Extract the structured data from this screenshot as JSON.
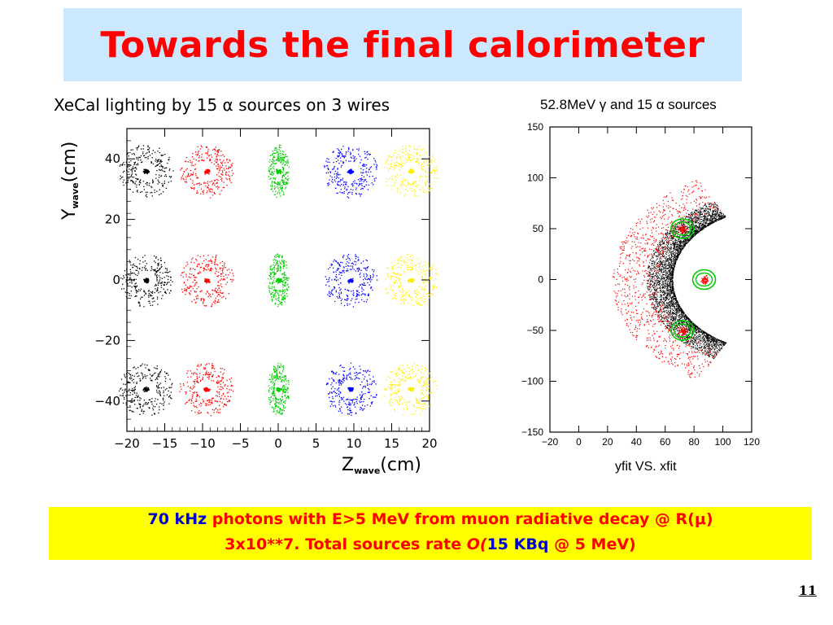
{
  "slide": {
    "title": "Towards the final calorimeter",
    "page_number": "11"
  },
  "footer": {
    "line1_rate": "70 kHz",
    "line1_text": "photons with E>5 MeV from muon radiative decay @ R(",
    "line1_mu": "μ",
    "line1_close": ")",
    "line2_text": "3x10**7. Total sources rate ",
    "line2_o": "O(",
    "line2_value": "15",
    "line2_unit": "KBq",
    "line2_rest": "@ 5 MeV",
    "line2_close": ")"
  },
  "chart_data": [
    {
      "type": "scatter",
      "title": "XeCal lighting by 15 α sources on 3 wires",
      "xlabel_main": "Z",
      "xlabel_sub": "wave",
      "xlabel_unit": "(cm)",
      "ylabel_main": "Y",
      "ylabel_sub": "wave",
      "ylabel_unit": "(cm)",
      "xlim": [
        -20,
        20
      ],
      "ylim": [
        -50,
        50
      ],
      "xticks": [
        -20,
        -15,
        -10,
        -5,
        0,
        5,
        10,
        15,
        20
      ],
      "yticks": [
        -40,
        -20,
        0,
        20,
        40
      ],
      "colors": [
        "#000000",
        "#ff0000",
        "#00cc00",
        "#0000ff",
        "#ffee00"
      ],
      "sources_x": [
        -17.5,
        -9.5,
        0,
        9.5,
        17.5
      ],
      "sources_y": [
        36,
        0,
        -36
      ],
      "series": [
        {
          "color": "#000000",
          "x": [
            -17.5,
            -17.5,
            -17.5
          ],
          "y": [
            36,
            0,
            -36
          ]
        },
        {
          "color": "#ff0000",
          "x": [
            -9.5,
            -9.5,
            -9.5
          ],
          "y": [
            36,
            0,
            -36
          ]
        },
        {
          "color": "#00cc00",
          "x": [
            0,
            0,
            0
          ],
          "y": [
            36,
            0,
            -36
          ]
        },
        {
          "color": "#0000ff",
          "x": [
            9.5,
            9.5,
            9.5
          ],
          "y": [
            36,
            0,
            -36
          ]
        },
        {
          "color": "#ffee00",
          "x": [
            17.5,
            17.5,
            17.5
          ],
          "y": [
            36,
            0,
            -36
          ]
        }
      ]
    },
    {
      "type": "scatter",
      "title": "52.8MeV γ and 15 α  sources",
      "xlabel": "yfit VS. xfit",
      "xlim": [
        -20,
        120
      ],
      "ylim": [
        -150,
        150
      ],
      "xticks": [
        -20,
        0,
        20,
        40,
        60,
        80,
        100,
        120
      ],
      "yticks": [
        -150,
        -100,
        -50,
        0,
        50,
        100,
        150
      ],
      "arc_inner_radius": 70,
      "arc_outer_radius": 110,
      "arc_angle_deg": 62,
      "alpha_sources": [
        {
          "x": 72,
          "y": 50
        },
        {
          "x": 87,
          "y": 0
        },
        {
          "x": 72,
          "y": -50
        }
      ],
      "colors": {
        "gamma": "#000000",
        "alpha": "#ff0000",
        "circle": "#00cc00"
      }
    }
  ]
}
